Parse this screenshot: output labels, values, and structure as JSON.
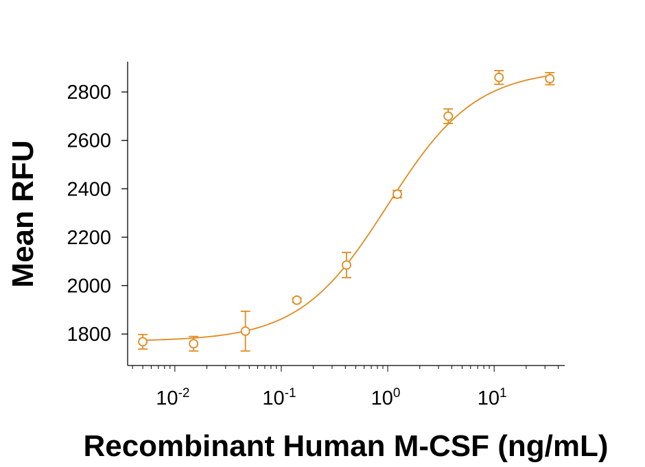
{
  "chart_data": {
    "type": "scatter",
    "xlabel": "Recombinant Human M-CSF (ng/mL)",
    "ylabel": "Mean RFU",
    "x_scale": "log",
    "xlim": [
      0.0036,
      46
    ],
    "ylim": [
      1670,
      2925
    ],
    "x_ticks": [
      {
        "value": 0.01,
        "base": "10",
        "exp": "-2"
      },
      {
        "value": 0.1,
        "base": "10",
        "exp": "-1"
      },
      {
        "value": 1,
        "base": "10",
        "exp": "0"
      },
      {
        "value": 10,
        "base": "10",
        "exp": "1"
      }
    ],
    "y_ticks": [
      1800,
      2000,
      2200,
      2400,
      2600,
      2800
    ],
    "grid": false,
    "color": "#E08A1E",
    "points": [
      {
        "x": 0.005,
        "y": 1768,
        "err": 30
      },
      {
        "x": 0.015,
        "y": 1760,
        "err": 30
      },
      {
        "x": 0.046,
        "y": 1812,
        "err": 82
      },
      {
        "x": 0.14,
        "y": 1940,
        "err": 8
      },
      {
        "x": 0.41,
        "y": 2085,
        "err": 52
      },
      {
        "x": 1.23,
        "y": 2378,
        "err": 15
      },
      {
        "x": 3.7,
        "y": 2700,
        "err": 30
      },
      {
        "x": 11.1,
        "y": 2860,
        "err": 28
      },
      {
        "x": 33.3,
        "y": 2855,
        "err": 25
      }
    ],
    "fit_curve": {
      "model": "4PL",
      "bottom": 1770,
      "top": 2895,
      "ec50": 1.0,
      "hill": 1.05,
      "x_range": [
        0.005,
        33.3
      ]
    }
  }
}
